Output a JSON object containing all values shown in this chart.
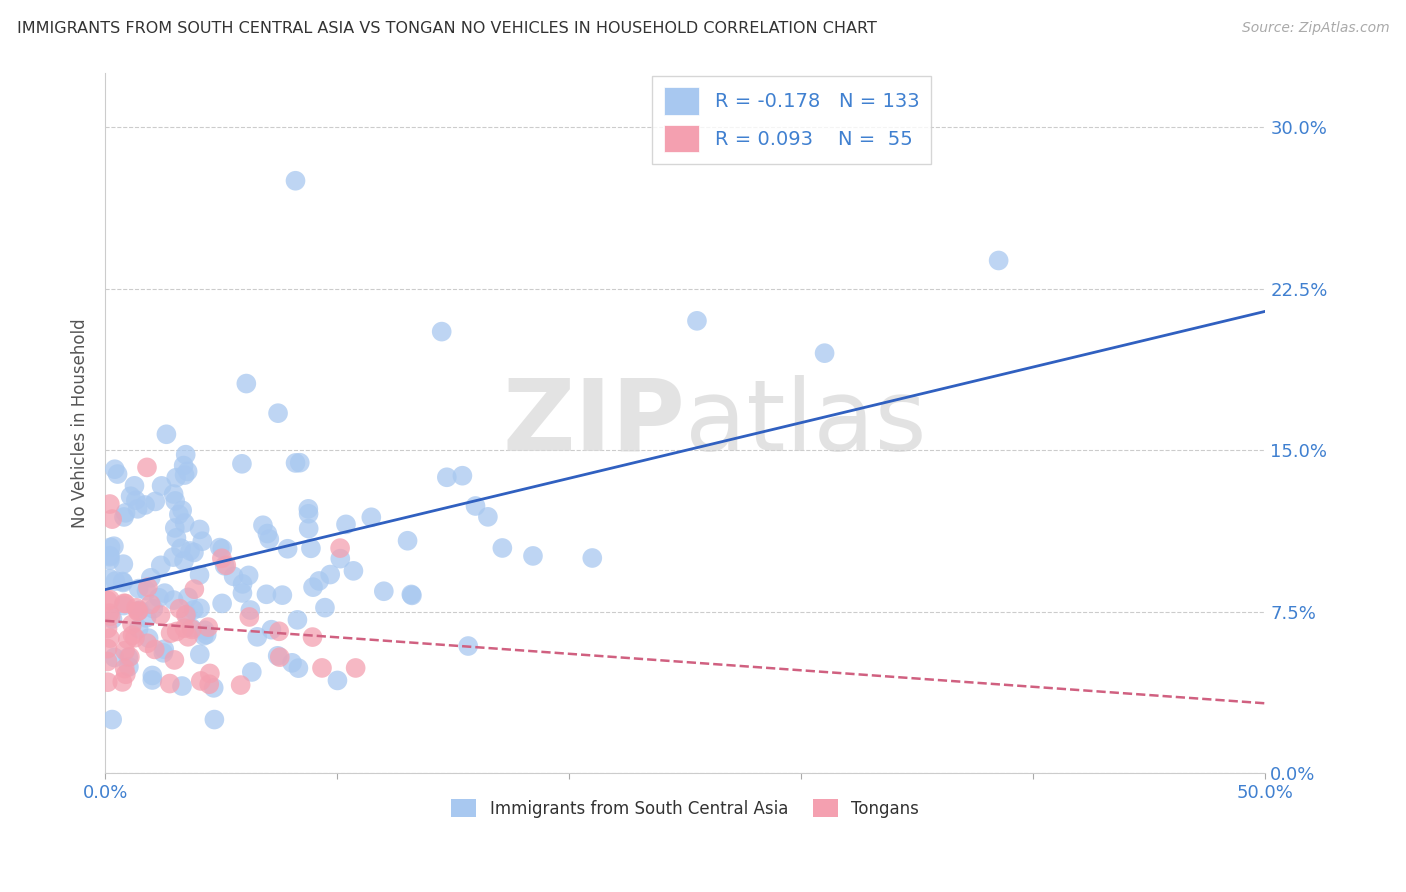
{
  "title": "IMMIGRANTS FROM SOUTH CENTRAL ASIA VS TONGAN NO VEHICLES IN HOUSEHOLD CORRELATION CHART",
  "source": "Source: ZipAtlas.com",
  "ylabel": "No Vehicles in Household",
  "xlim": [
    0.0,
    0.5
  ],
  "ylim": [
    0.0,
    0.325
  ],
  "ytick_vals": [
    0.0,
    0.075,
    0.15,
    0.225,
    0.3
  ],
  "ytick_labels": [
    "0.0%",
    "7.5%",
    "15.0%",
    "22.5%",
    "30.0%"
  ],
  "xtick_vals": [
    0.0,
    0.1,
    0.2,
    0.3,
    0.4,
    0.5
  ],
  "xtick_labels": [
    "0.0%",
    "",
    "",
    "",
    "",
    "50.0%"
  ],
  "blue_R": -0.178,
  "blue_N": 133,
  "pink_R": 0.093,
  "pink_N": 55,
  "blue_scatter_color": "#A8C8F0",
  "pink_scatter_color": "#F4A0B0",
  "blue_line_color": "#3060C0",
  "pink_line_color": "#D06080",
  "watermark_zip": "ZIP",
  "watermark_atlas": "atlas",
  "legend_label_blue": "Immigrants from South Central Asia",
  "legend_label_pink": "Tongans",
  "tick_color": "#4080D0",
  "label_color": "#555555",
  "grid_color": "#cccccc"
}
